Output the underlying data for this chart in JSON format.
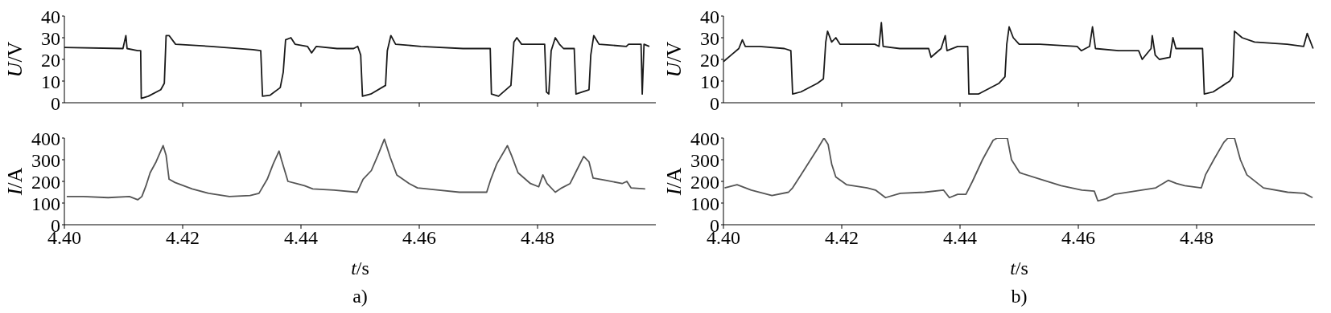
{
  "chart_data": [
    {
      "type": "line",
      "ylabel": "U/V",
      "xlim": [
        4.4,
        4.5
      ],
      "xticks": [
        4.42,
        4.44,
        4.46,
        4.48
      ],
      "ylim": [
        0,
        40
      ],
      "yticks": [
        0,
        10,
        20,
        30,
        40
      ],
      "tick_labels": "y",
      "marker": "none",
      "series": [
        {
          "color": "#1a1a1a",
          "x": [
            4.4,
            4.4099,
            4.4104,
            4.4106,
            4.4124,
            4.4129,
            4.413,
            4.4142,
            4.4163,
            4.4169,
            4.4172,
            4.4177,
            4.4188,
            4.4248,
            4.4319,
            4.4332,
            4.4335,
            4.4348,
            4.4365,
            4.437,
            4.4374,
            4.4383,
            4.439,
            4.4411,
            4.4418,
            4.4426,
            4.4461,
            4.4489,
            4.4496,
            4.4501,
            4.4504,
            4.4518,
            4.4543,
            4.4546,
            4.4552,
            4.456,
            4.4603,
            4.4674,
            4.472,
            4.4722,
            4.4734,
            4.4755,
            4.476,
            4.4765,
            4.4773,
            4.4812,
            4.4815,
            4.4819,
            4.4823,
            4.483,
            4.4837,
            4.4844,
            4.4862,
            4.4865,
            4.4887,
            4.489,
            4.4895,
            4.4904,
            4.495,
            4.4954,
            4.4975,
            4.4977,
            4.498,
            4.4989
          ],
          "values": [
            25.5,
            25,
            31,
            25,
            24,
            24,
            2,
            3,
            6,
            9,
            31,
            31,
            27,
            26,
            24.5,
            24,
            3,
            3.5,
            7,
            14,
            29,
            30,
            27,
            26,
            23,
            26,
            25,
            25,
            26,
            22,
            3,
            4,
            8,
            24,
            31,
            27,
            26,
            25,
            25,
            4,
            3,
            8,
            28,
            30,
            27,
            27,
            5,
            4,
            24,
            30,
            27,
            25,
            25,
            4,
            6,
            22,
            31,
            27,
            26,
            27,
            27,
            4,
            27,
            26
          ]
        }
      ]
    },
    {
      "type": "line",
      "ylabel": "I/A",
      "xlabel": "t/s",
      "annotations": [
        "a)"
      ],
      "xlim": [
        4.4,
        4.5
      ],
      "xticks": [
        {
          "value": 4.4,
          "label": "4.40"
        },
        4.42,
        4.44,
        4.46,
        4.48
      ],
      "ylim": [
        0,
        400
      ],
      "yticks": [
        0,
        100,
        200,
        300,
        400
      ],
      "marker": "none",
      "series": [
        {
          "color": "#555555",
          "x": [
            4.4004,
            4.4032,
            4.4074,
            4.411,
            4.4124,
            4.4131,
            4.4138,
            4.4145,
            4.4155,
            4.4163,
            4.4167,
            4.4172,
            4.4177,
            4.4187,
            4.4216,
            4.4244,
            4.4279,
            4.4314,
            4.4329,
            4.4343,
            4.4353,
            4.4363,
            4.4367,
            4.4378,
            4.4392,
            4.4406,
            4.442,
            4.4456,
            4.4495,
            4.4505,
            4.4519,
            4.453,
            4.4541,
            4.4551,
            4.4562,
            4.4583,
            4.4597,
            4.4633,
            4.4668,
            4.4714,
            4.4721,
            4.4731,
            4.4749,
            4.4756,
            4.4767,
            4.4788,
            4.4802,
            4.4809,
            4.4816,
            4.483,
            4.4841,
            4.4855,
            4.4866,
            4.4878,
            4.4887,
            4.4894,
            4.4915,
            4.4943,
            4.4951,
            4.4958,
            4.4982
          ],
          "values": [
            130,
            130,
            125,
            130,
            115,
            130,
            180,
            240,
            290,
            340,
            365,
            320,
            210,
            195,
            165,
            145,
            130,
            135,
            145,
            210,
            280,
            340,
            300,
            200,
            190,
            180,
            165,
            160,
            150,
            210,
            250,
            320,
            395,
            310,
            230,
            190,
            170,
            160,
            150,
            150,
            210,
            280,
            365,
            320,
            240,
            190,
            175,
            230,
            190,
            150,
            170,
            190,
            250,
            315,
            290,
            215,
            205,
            190,
            200,
            170,
            165
          ]
        }
      ]
    },
    {
      "type": "line",
      "ylabel": "U/V",
      "xlim": [
        4.4,
        4.5
      ],
      "xticks": [
        4.42,
        4.44,
        4.46,
        4.48
      ],
      "ylim": [
        0,
        40
      ],
      "yticks": [
        0,
        10,
        20,
        30,
        40
      ],
      "tick_labels": "y",
      "marker": "none",
      "series": [
        {
          "color": "#1a1a1a",
          "x": [
            4.4,
            4.4013,
            4.4026,
            4.4032,
            4.4037,
            4.4061,
            4.4103,
            4.4114,
            4.4117,
            4.4131,
            4.4159,
            4.4169,
            4.4173,
            4.4176,
            4.4183,
            4.419,
            4.4197,
            4.4256,
            4.4263,
            4.4267,
            4.427,
            4.4298,
            4.4347,
            4.4351,
            4.4368,
            4.4375,
            4.4378,
            4.4396,
            4.4413,
            4.4415,
            4.4431,
            4.4466,
            4.4476,
            4.4479,
            4.4483,
            4.449,
            4.45,
            4.4535,
            4.4598,
            4.4605,
            4.4619,
            4.4624,
            4.4629,
            4.4668,
            4.4702,
            4.4708,
            4.4723,
            4.4725,
            4.473,
            4.4737,
            4.4755,
            4.476,
            4.4765,
            4.481,
            4.4813,
            4.4828,
            4.4856,
            4.4861,
            4.4864,
            4.4877,
            4.4898,
            4.4953,
            4.4981,
            4.4987,
            4.4997
          ],
          "values": [
            19,
            22,
            25,
            29,
            26,
            26,
            25,
            24,
            4,
            5,
            9,
            11,
            28,
            33,
            28,
            30,
            27,
            27,
            26,
            37,
            26,
            25,
            25,
            21,
            25,
            31,
            24,
            26,
            26,
            4,
            4,
            9,
            12,
            27,
            35,
            30,
            27,
            27,
            26,
            24,
            26,
            35,
            25,
            24,
            24,
            20,
            25,
            31,
            22,
            20,
            21,
            30,
            25,
            25,
            4,
            5,
            10,
            12,
            33,
            30,
            28,
            27,
            26,
            32,
            25
          ]
        }
      ]
    },
    {
      "type": "line",
      "ylabel": "I/A",
      "xlabel": "t/s",
      "annotations": [
        "b)"
      ],
      "xlim": [
        4.4,
        4.5
      ],
      "xticks": [
        {
          "value": 4.4,
          "label": "4.40"
        },
        4.42,
        4.44,
        4.46,
        4.48
      ],
      "ylim": [
        0,
        400
      ],
      "yticks": [
        0,
        100,
        200,
        300,
        400
      ],
      "marker": "none",
      "series": [
        {
          "color": "#555555",
          "x": [
            4.4002,
            4.4023,
            4.4047,
            4.4082,
            4.411,
            4.4117,
            4.4131,
            4.4145,
            4.4159,
            4.417,
            4.4177,
            4.4183,
            4.419,
            4.4208,
            4.4243,
            4.4257,
            4.4274,
            4.4299,
            4.434,
            4.4372,
            4.4382,
            4.4396,
            4.441,
            4.4421,
            4.4438,
            4.4456,
            4.4463,
            4.448,
            4.4487,
            4.4501,
            4.4536,
            4.4571,
            4.4606,
            4.4627,
            4.4633,
            4.4647,
            4.4661,
            4.4696,
            4.4731,
            4.4752,
            4.4766,
            4.478,
            4.4808,
            4.4815,
            4.4829,
            4.4846,
            4.4853,
            4.4864,
            4.4874,
            4.4885,
            4.4913,
            4.4954,
            4.4982,
            4.4996
          ],
          "values": [
            170,
            185,
            160,
            135,
            150,
            170,
            230,
            290,
            350,
            400,
            370,
            280,
            220,
            185,
            170,
            160,
            125,
            145,
            150,
            160,
            125,
            140,
            140,
            200,
            300,
            390,
            400,
            400,
            300,
            240,
            210,
            180,
            160,
            155,
            110,
            120,
            140,
            155,
            170,
            205,
            190,
            180,
            170,
            230,
            300,
            380,
            400,
            400,
            300,
            230,
            170,
            150,
            145,
            125
          ]
        }
      ]
    }
  ]
}
